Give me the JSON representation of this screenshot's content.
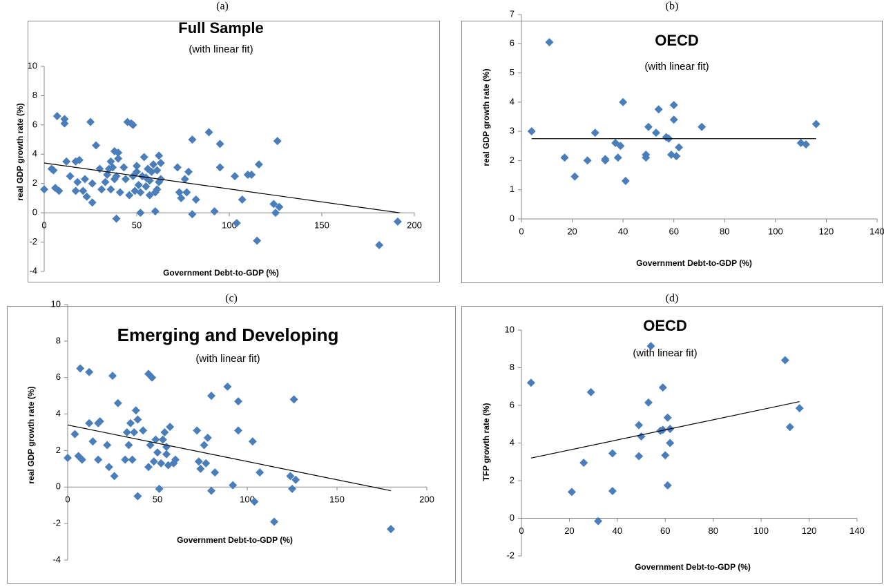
{
  "chart_data": [
    {
      "type": "scatter",
      "label": "(a)",
      "title": "Full Sample",
      "subtitle": "(with linear fit)",
      "xlabel": "Government Debt-to-GDP (%)",
      "ylabel": "real GDP growth rate (%)",
      "color": "#4a7ebb",
      "xlim": [
        0,
        200
      ],
      "xticks": [
        0,
        50,
        100,
        150,
        200
      ],
      "ylim": [
        -4,
        10
      ],
      "yticks": [
        -4,
        -2,
        0,
        2,
        4,
        6,
        8,
        10
      ],
      "x": [
        0,
        4,
        5,
        6,
        8,
        7,
        11,
        11,
        12,
        14,
        17,
        17,
        18,
        19,
        21,
        22,
        23,
        25,
        26,
        26,
        28,
        30,
        31,
        33,
        34,
        35,
        36,
        36,
        37,
        38,
        38,
        39,
        39,
        40,
        40,
        41,
        43,
        44,
        45,
        46,
        47,
        48,
        48,
        49,
        50,
        50,
        51,
        52,
        52,
        53,
        54,
        55,
        55,
        56,
        57,
        57,
        58,
        59,
        60,
        60,
        61,
        61,
        62,
        62,
        63,
        63,
        72,
        73,
        74,
        76,
        77,
        78,
        80,
        80,
        82,
        89,
        92,
        95,
        95,
        103,
        104,
        107,
        110,
        112,
        115,
        116,
        124,
        125,
        126,
        127,
        181,
        191
      ],
      "values": [
        1.6,
        3.0,
        2.9,
        1.7,
        1.5,
        6.6,
        6.4,
        6.1,
        3.5,
        2.5,
        1.5,
        3.5,
        2.1,
        3.6,
        1.5,
        2.3,
        1.1,
        6.2,
        0.7,
        2.0,
        4.6,
        3.0,
        1.6,
        2.1,
        2.6,
        3.0,
        1.6,
        3.5,
        3.1,
        4.2,
        2.3,
        2.5,
        -0.4,
        4.1,
        3.7,
        1.4,
        3.1,
        2.3,
        6.2,
        1.2,
        6.1,
        2.5,
        6.0,
        1.5,
        2.8,
        3.2,
        1.9,
        0.0,
        1.4,
        2.5,
        3.8,
        2.4,
        1.8,
        3.0,
        2.2,
        1.2,
        2.8,
        3.3,
        1.4,
        0.1,
        2.9,
        1.6,
        2.1,
        3.9,
        3.4,
        2.3,
        3.1,
        1.4,
        1.0,
        2.3,
        1.4,
        2.8,
        5.0,
        -0.1,
        0.9,
        5.5,
        0.1,
        4.7,
        3.1,
        2.5,
        -0.7,
        0.9,
        2.6,
        2.6,
        -1.9,
        3.3,
        0.6,
        0.0,
        4.9,
        0.4,
        -2.2,
        -0.6
      ],
      "fit": {
        "x": [
          0,
          192
        ],
        "values": [
          3.4,
          0
        ]
      }
    },
    {
      "type": "scatter",
      "label": "(b)",
      "title": "OECD",
      "subtitle": "(with linear fit)",
      "xlabel": "Government Debt-to-GDP (%)",
      "ylabel": "real GDP growth rate (%)",
      "color": "#4a7ebb",
      "xlim": [
        0,
        140
      ],
      "xticks": [
        0,
        20,
        40,
        60,
        80,
        100,
        120,
        140
      ],
      "ylim": [
        0,
        7
      ],
      "yticks": [
        0,
        1,
        2,
        3,
        4,
        5,
        6,
        7
      ],
      "x": [
        4,
        11,
        17,
        21,
        26,
        29,
        33,
        33,
        37,
        38,
        39,
        40,
        41,
        49,
        49,
        50,
        53,
        54,
        57,
        58,
        59,
        60,
        60,
        61,
        62,
        71,
        110,
        112,
        116
      ],
      "values": [
        3.0,
        6.05,
        2.1,
        1.45,
        2.0,
        2.95,
        2.05,
        2.0,
        2.6,
        2.1,
        2.5,
        4.0,
        1.3,
        2.1,
        2.2,
        3.15,
        2.95,
        3.75,
        2.8,
        2.75,
        2.2,
        3.9,
        3.4,
        2.15,
        2.45,
        3.15,
        2.6,
        2.55,
        3.25
      ],
      "fit": {
        "x": [
          4,
          116
        ],
        "values": [
          2.75,
          2.75
        ]
      }
    },
    {
      "type": "scatter",
      "label": "(c)",
      "title": "Emerging and Developing",
      "subtitle": "(with linear fit)",
      "xlabel": "Government Debt-to-GDP (%)",
      "ylabel": "real GDP growth rate (%)",
      "color": "#4a7ebb",
      "xlim": [
        0,
        200
      ],
      "xticks": [
        0,
        50,
        100,
        150,
        200
      ],
      "ylim": [
        -4,
        10
      ],
      "yticks": [
        -4,
        -2,
        0,
        2,
        4,
        6,
        8,
        10
      ],
      "x": [
        0,
        4,
        6,
        8,
        7,
        12,
        12,
        14,
        17,
        18,
        17,
        22,
        23,
        25,
        26,
        28,
        32,
        33,
        34,
        35,
        36,
        37,
        38,
        39,
        39,
        42,
        45,
        45,
        46,
        47,
        48,
        49,
        50,
        51,
        52,
        53,
        54,
        55,
        55,
        56,
        57,
        59,
        60,
        72,
        73,
        74,
        76,
        77,
        78,
        80,
        80,
        82,
        89,
        92,
        95,
        95,
        103,
        104,
        107,
        115,
        124,
        125,
        126,
        127,
        180
      ],
      "values": [
        1.6,
        2.9,
        1.7,
        1.5,
        6.5,
        6.3,
        3.5,
        2.5,
        3.5,
        3.6,
        1.5,
        2.3,
        1.1,
        6.1,
        0.6,
        4.6,
        1.5,
        3.0,
        2.3,
        3.5,
        1.5,
        3.0,
        4.2,
        3.7,
        -0.5,
        3.1,
        6.2,
        1.1,
        2.3,
        6.0,
        1.4,
        2.6,
        1.9,
        -0.1,
        1.3,
        2.6,
        3.0,
        2.2,
        1.8,
        1.2,
        3.3,
        1.3,
        1.5,
        3.1,
        1.4,
        1.0,
        2.3,
        1.3,
        2.7,
        5.0,
        -0.2,
        0.8,
        5.5,
        0.1,
        4.7,
        3.1,
        2.5,
        -0.8,
        0.8,
        -1.9,
        0.6,
        -0.1,
        4.8,
        0.4,
        -2.3
      ],
      "fit": {
        "x": [
          0,
          180
        ],
        "values": [
          3.4,
          -0.2
        ]
      }
    },
    {
      "type": "scatter",
      "label": "(d)",
      "title": "OECD",
      "subtitle": "(with linear fit)",
      "xlabel": "Government Debt-to-GDP (%)",
      "ylabel": "TFP growth rate (%)",
      "color": "#4a7ebb",
      "xlim": [
        0,
        140
      ],
      "xticks": [
        0,
        20,
        40,
        60,
        80,
        100,
        120,
        140
      ],
      "ylim": [
        -2,
        10
      ],
      "yticks": [
        -2,
        0,
        2,
        4,
        6,
        8,
        10
      ],
      "x": [
        4,
        21,
        26,
        29,
        32,
        38,
        38,
        49,
        49,
        50,
        53,
        54,
        58,
        59,
        59,
        60,
        61,
        61,
        62,
        62,
        110,
        112,
        116
      ],
      "values": [
        7.2,
        1.4,
        2.95,
        6.7,
        -0.15,
        1.45,
        3.45,
        4.95,
        3.3,
        4.35,
        6.15,
        9.15,
        4.65,
        6.95,
        4.7,
        3.35,
        5.35,
        1.75,
        4.0,
        4.75,
        8.4,
        4.85,
        5.85
      ],
      "fit": {
        "x": [
          4,
          116
        ],
        "values": [
          3.2,
          6.2
        ]
      }
    }
  ]
}
